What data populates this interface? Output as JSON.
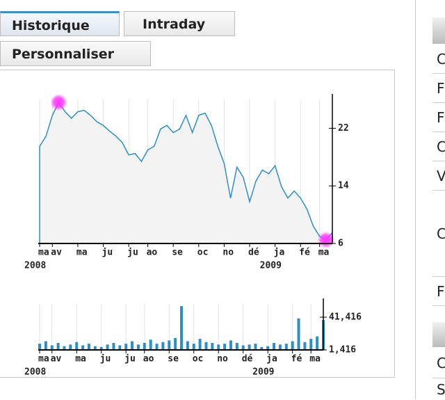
{
  "tabs": [
    "Historique",
    "Intraday",
    "Personnaliser"
  ],
  "chart_data": [
    {
      "type": "area",
      "values": [
        19.5,
        20.9,
        23.8,
        25.6,
        24.3,
        23.4,
        24.3,
        24.5,
        23.8,
        22.9,
        22.4,
        21.6,
        20.9,
        20,
        18.3,
        18.5,
        17.4,
        19,
        19.5,
        21.9,
        22.4,
        21.4,
        21.9,
        23.8,
        21.4,
        23.8,
        24.1,
        22.4,
        19.5,
        17.1,
        12.3,
        16.6,
        15.2,
        11.8,
        14.7,
        16.2,
        15.7,
        16.8,
        13.9,
        12.3,
        13.3,
        12.3,
        10.8,
        8.4,
        7,
        6.5,
        7.5
      ],
      "xlim": [
        0,
        46
      ],
      "xticks": [
        {
          "value": 0,
          "label": "ma"
        },
        {
          "value": 2,
          "label": "av"
        },
        {
          "value": 6,
          "label": "ma"
        },
        {
          "value": 10,
          "label": "ju"
        },
        {
          "value": 14,
          "label": "ju"
        },
        {
          "value": 17,
          "label": "ao"
        },
        {
          "value": 21,
          "label": "se"
        },
        {
          "value": 25,
          "label": "oc"
        },
        {
          "value": 29,
          "label": "no"
        },
        {
          "value": 33,
          "label": "dé"
        },
        {
          "value": 37,
          "label": "ja"
        },
        {
          "value": 41,
          "label": "fé"
        },
        {
          "value": 44,
          "label": "ma"
        }
      ],
      "year_labels": [
        {
          "value": 0,
          "label": "2008"
        },
        {
          "value": 37,
          "label": "2009"
        }
      ],
      "ylim": [
        6,
        26
      ],
      "yticks": [
        6,
        14,
        22
      ],
      "color": "#2b8fc6",
      "fill": "#f3f3f3",
      "highlight_color": "#ff33ff",
      "highlights": [
        3,
        45
      ],
      "grid": true
    },
    {
      "type": "bar",
      "values": [
        9000,
        12000,
        7000,
        10000,
        6000,
        8000,
        11000,
        7000,
        9000,
        6000,
        5000,
        8000,
        10000,
        7000,
        9000,
        12000,
        8000,
        10000,
        14000,
        9000,
        11000,
        13000,
        16000,
        55000,
        12000,
        9000,
        15000,
        11000,
        10000,
        8000,
        9000,
        13000,
        10000,
        7000,
        8000,
        9000,
        5000,
        6000,
        10000,
        8000,
        9000,
        12000,
        40000,
        11000,
        15000,
        18000,
        38000
      ],
      "xlim": [
        0,
        46
      ],
      "xticks": [
        {
          "value": 0,
          "label": "ma"
        },
        {
          "value": 2,
          "label": "av"
        },
        {
          "value": 6,
          "label": "ma"
        },
        {
          "value": 10,
          "label": "ju"
        },
        {
          "value": 14,
          "label": "ju"
        },
        {
          "value": 17,
          "label": "ao"
        },
        {
          "value": 21,
          "label": "se"
        },
        {
          "value": 25,
          "label": "oc"
        },
        {
          "value": 29,
          "label": "no"
        },
        {
          "value": 33,
          "label": "dé"
        },
        {
          "value": 37,
          "label": "ja"
        },
        {
          "value": 41,
          "label": "fé"
        },
        {
          "value": 44,
          "label": "ma"
        }
      ],
      "year_labels": [
        {
          "value": 0,
          "label": "2008"
        },
        {
          "value": 37,
          "label": "2009"
        }
      ],
      "ylim": [
        1416,
        57600
      ],
      "yticks": [
        {
          "value": 1416,
          "label": "1,416"
        },
        {
          "value": 41416,
          "label": "41,416"
        }
      ],
      "color": "#2b8fc6",
      "grid": true
    }
  ],
  "side_panel": {
    "rows": [
      "C",
      "F",
      "F",
      "C",
      "V",
      "C",
      "F",
      "C",
      "S"
    ]
  }
}
